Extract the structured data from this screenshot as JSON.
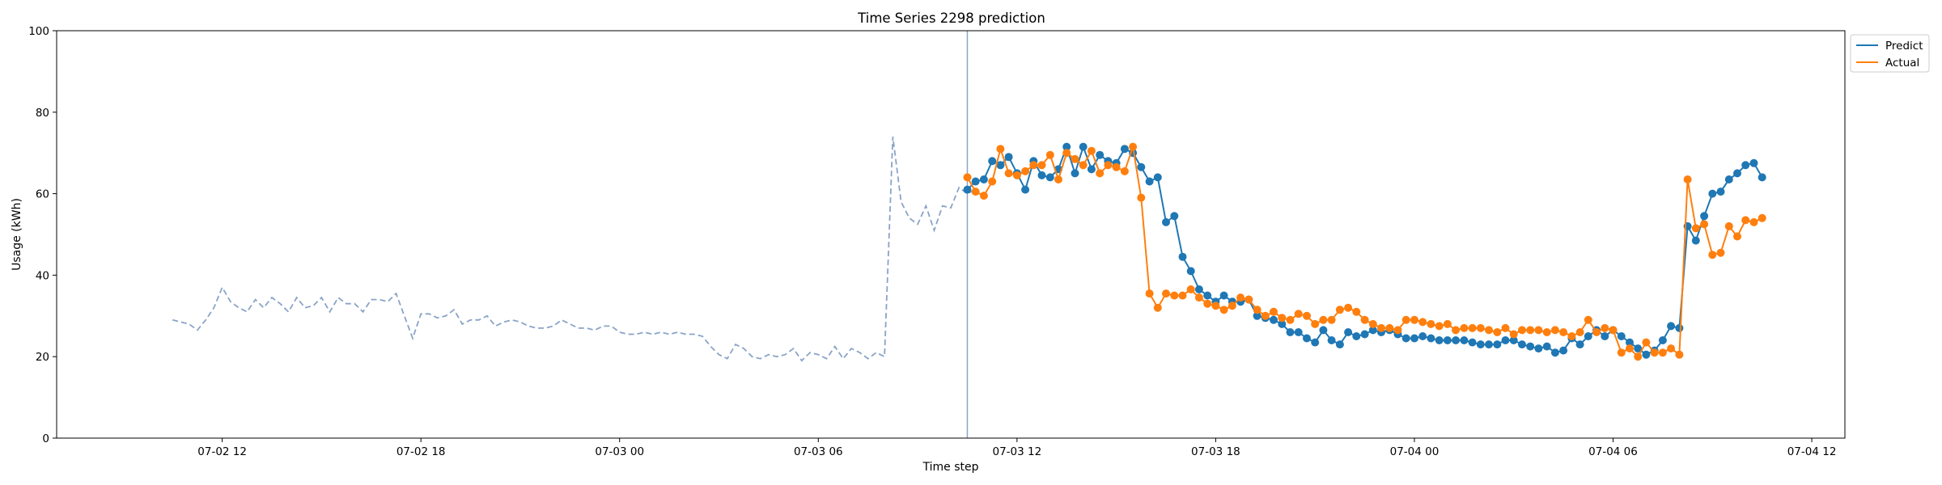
{
  "chart_data": {
    "type": "line",
    "title": "Time Series 2298 prediction",
    "xlabel": "Time step",
    "ylabel": "Usage (kWh)",
    "ylim": [
      0,
      100
    ],
    "yticks": [
      0,
      20,
      40,
      60,
      80,
      100
    ],
    "xlim": [
      "2024-07-02T07:00",
      "2024-07-04T13:00"
    ],
    "xticks": [
      {
        "t": "2024-07-02T12:00",
        "label": "07-02 12"
      },
      {
        "t": "2024-07-02T18:00",
        "label": "07-02 18"
      },
      {
        "t": "2024-07-03T00:00",
        "label": "07-03 00"
      },
      {
        "t": "2024-07-03T06:00",
        "label": "07-03 06"
      },
      {
        "t": "2024-07-03T12:00",
        "label": "07-03 12"
      },
      {
        "t": "2024-07-03T18:00",
        "label": "07-03 18"
      },
      {
        "t": "2024-07-04T00:00",
        "label": "07-04 00"
      },
      {
        "t": "2024-07-04T06:00",
        "label": "07-04 06"
      },
      {
        "t": "2024-07-04T12:00",
        "label": "07-04 12"
      }
    ],
    "grid": false,
    "legend_position": "upper-right-outside",
    "forecast_start": "2024-07-03T10:30",
    "step_minutes": 15,
    "history": {
      "start": "2024-07-02T10:30",
      "color": "#8aa4c8",
      "style": "dashed",
      "values": [
        29,
        28.5,
        28,
        26.5,
        29,
        32,
        37,
        33.5,
        32,
        31,
        34,
        32,
        34.5,
        33,
        31,
        34.5,
        32,
        32.5,
        34.5,
        31,
        34.5,
        33,
        33,
        31,
        34,
        34,
        33.5,
        35.5,
        30,
        24.5,
        30.5,
        30.5,
        29.5,
        30,
        31.5,
        28,
        29,
        29,
        30,
        27.5,
        28.5,
        29,
        28.5,
        27.5,
        27,
        27,
        27.5,
        29,
        28,
        27,
        27,
        26.5,
        27.5,
        27.5,
        26,
        25.5,
        25.5,
        26,
        25.5,
        26,
        25.5,
        26,
        25.5,
        25.5,
        25,
        22.5,
        20.5,
        19.5,
        23,
        22,
        20,
        19.5,
        20.5,
        20,
        20.5,
        22,
        19,
        21,
        20.5,
        19.5,
        22.5,
        19.5,
        22,
        21,
        19.5,
        21,
        20,
        74,
        58,
        54,
        52.5,
        57,
        51,
        57,
        56.5,
        61.5,
        60,
        61
      ]
    },
    "series": [
      {
        "name": "Predict",
        "color": "#1f77b4",
        "values": [
          61,
          63,
          63.5,
          68,
          67,
          69,
          65,
          61,
          68,
          64.5,
          64,
          66,
          71.5,
          65,
          71.5,
          66,
          69.5,
          68,
          67.5,
          71,
          70,
          66.5,
          63,
          64,
          53,
          54.5,
          44.5,
          41,
          36.5,
          35,
          33.5,
          35,
          33.5,
          33.5,
          34,
          30,
          29.5,
          29,
          28,
          26,
          26,
          24.5,
          23.5,
          26.5,
          24,
          23,
          26,
          25,
          25.5,
          26.5,
          26,
          26.5,
          25.5,
          24.5,
          24.5,
          25,
          24.5,
          24,
          24,
          24,
          24,
          23.5,
          23,
          23,
          23,
          24,
          24,
          23,
          22.5,
          22,
          22.5,
          21,
          21.5,
          24.5,
          23,
          25,
          26.5,
          25,
          26.5,
          25,
          23.5,
          22,
          20.5,
          21.5,
          24,
          27.5,
          27,
          52,
          48.5,
          54.5,
          60,
          60.5,
          63.5,
          65,
          67,
          67.5,
          64
        ]
      },
      {
        "name": "Actual",
        "color": "#ff7f0e",
        "values": [
          64,
          60.5,
          59.5,
          63,
          71,
          65,
          64.5,
          65.5,
          67,
          67,
          69.5,
          63.5,
          70,
          68.5,
          67,
          70.5,
          65,
          67,
          66.5,
          65.5,
          71.5,
          59,
          35.5,
          32,
          35.5,
          35,
          35,
          36.5,
          34.5,
          33,
          32.5,
          31.5,
          32.5,
          34.5,
          34,
          31.5,
          30,
          31,
          29.5,
          29,
          30.5,
          30,
          28,
          29,
          29,
          31.5,
          32,
          31,
          29,
          28,
          27,
          27,
          26.5,
          29,
          29,
          28.5,
          28,
          27.5,
          28,
          26.5,
          27,
          27,
          27,
          26.5,
          26,
          27,
          25.5,
          26.5,
          26.5,
          26.5,
          26,
          26.5,
          26,
          25,
          26,
          29,
          26,
          27,
          26.5,
          21,
          22,
          20,
          23.5,
          21,
          21,
          22,
          20.5,
          63.5,
          51.5,
          52.5,
          45,
          45.5,
          52,
          49.5,
          53.5,
          53,
          54
        ]
      }
    ]
  }
}
